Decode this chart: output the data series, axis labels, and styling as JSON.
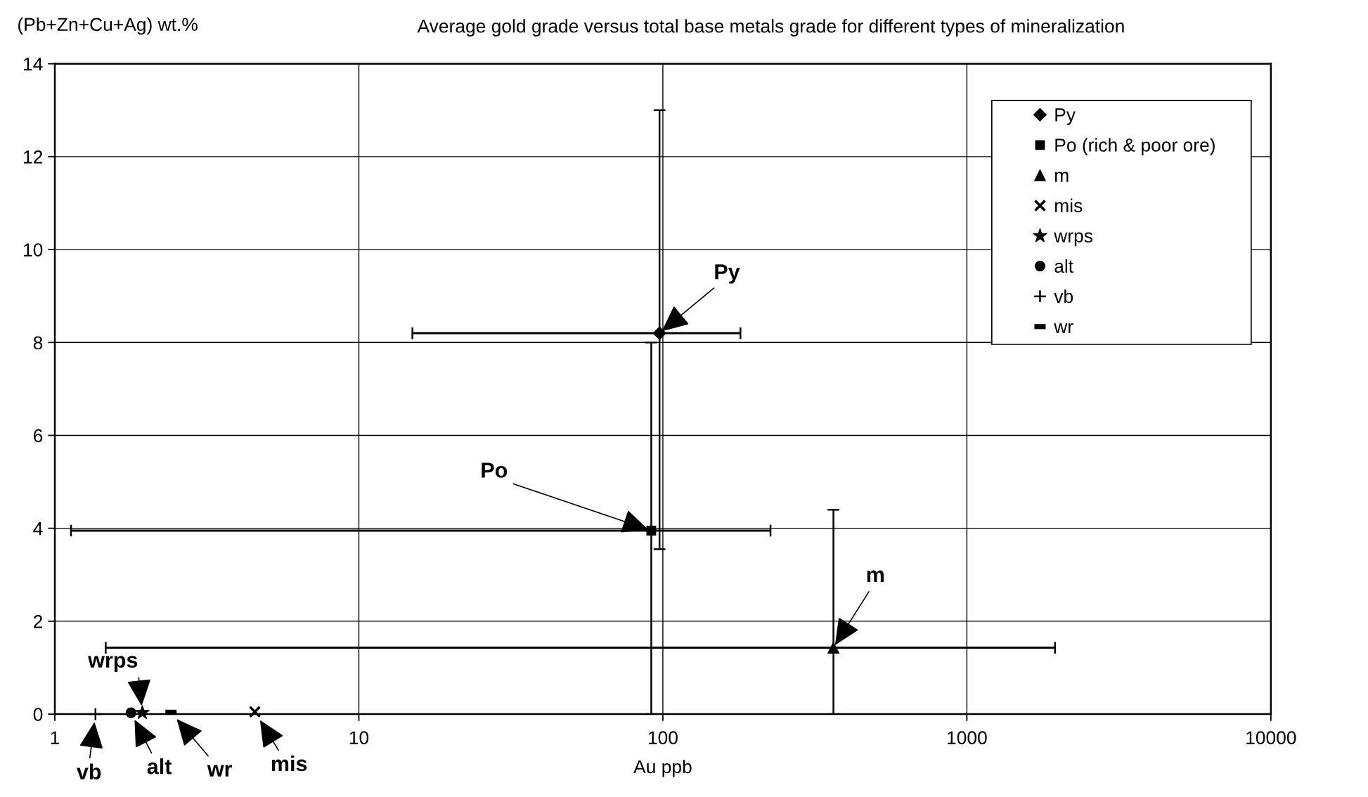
{
  "chart_data": {
    "type": "scatter",
    "title": "Average gold grade versus total base metals grade for different types of mineralization",
    "xlabel": "Au ppb",
    "ylabel": "(Pb+Zn+Cu+Ag) wt.%",
    "log": "x",
    "xlim": [
      1,
      10000
    ],
    "xticks": [
      1,
      10,
      100,
      1000,
      10000
    ],
    "ylim": [
      0,
      14
    ],
    "yticks": [
      0,
      2,
      4,
      6,
      8,
      10,
      12,
      14
    ],
    "grid": true,
    "legend": "top right",
    "series": [
      {
        "name": "Py",
        "color": "#000000",
        "marker": "diamond",
        "x": [
          97.5
        ],
        "values": [
          8.2
        ],
        "errors": [
          [
            3.55,
            13.0
          ]
        ],
        "xerrors": [
          [
            15,
            180
          ]
        ]
      },
      {
        "name": "Po (rich & poor ore)",
        "color": "#000000",
        "marker": "square",
        "x": [
          91.6
        ],
        "values": [
          3.95
        ],
        "errors": [
          [
            0,
            8.0
          ]
        ],
        "xerrors": [
          [
            1.13,
            226
          ]
        ]
      },
      {
        "name": "m",
        "color": "#000000",
        "marker": "triangle",
        "x": [
          364
        ],
        "values": [
          1.43
        ],
        "errors": [
          [
            0,
            4.4
          ]
        ],
        "xerrors": [
          [
            1.47,
            1950
          ]
        ]
      },
      {
        "name": "mis",
        "color": "#000000",
        "marker": "x",
        "x": [
          4.55
        ],
        "values": [
          0.05
        ]
      },
      {
        "name": "wrps",
        "color": "#000000",
        "marker": "star",
        "x": [
          1.94
        ],
        "values": [
          0.03
        ]
      },
      {
        "name": "alt",
        "color": "#000000",
        "marker": "circle",
        "x": [
          1.78
        ],
        "values": [
          0.03
        ]
      },
      {
        "name": "vb",
        "color": "#000000",
        "marker": "cross",
        "x": [
          1.36
        ],
        "values": [
          0
        ]
      },
      {
        "name": "wr",
        "color": "#000000",
        "x": [
          2.41
        ],
        "values": [
          0.04
        ]
      }
    ],
    "annotations": [
      {
        "text": "Py",
        "x": 97.5,
        "y": 8.2
      },
      {
        "text": "Po",
        "x": 91.6,
        "y": 3.95
      },
      {
        "text": "m",
        "x": 364,
        "y": 1.43
      },
      {
        "text": "wrps",
        "x": 1.94,
        "y": 0.03
      },
      {
        "text": "vb",
        "x": 1.36,
        "y": 0
      },
      {
        "text": "alt",
        "x": 1.78,
        "y": 0.03
      },
      {
        "text": "wr",
        "x": 2.41,
        "y": 0.04
      },
      {
        "text": "mis",
        "x": 4.55,
        "y": 0.05
      }
    ]
  }
}
